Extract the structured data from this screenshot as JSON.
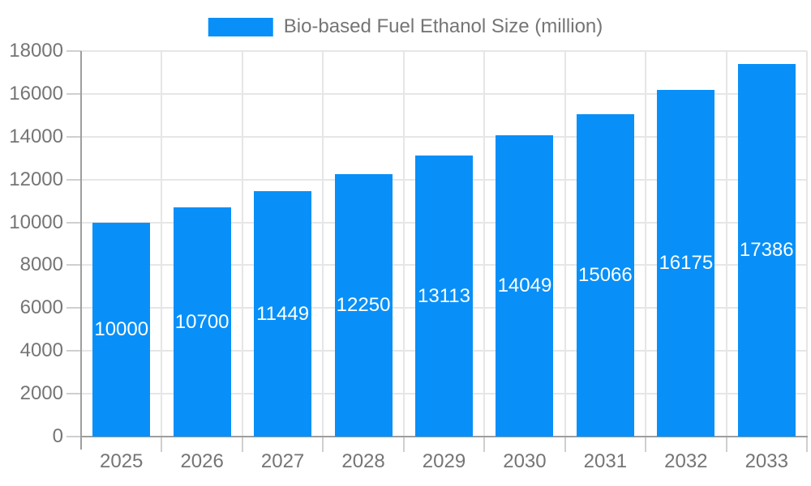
{
  "chart_data": {
    "type": "bar",
    "title": "Bio-based Fuel Ethanol Size (million)",
    "categories": [
      "2025",
      "2026",
      "2027",
      "2028",
      "2029",
      "2030",
      "2031",
      "2032",
      "2033"
    ],
    "series": [
      {
        "name": "Bio-based Fuel Ethanol Size (million)",
        "values": [
          10000,
          10700,
          11449,
          12250,
          13113,
          14049,
          15066,
          16175,
          17386
        ]
      }
    ],
    "xlabel": "",
    "ylabel": "",
    "ylim": [
      0,
      18000
    ],
    "ytick_step": 2000,
    "grid": true,
    "legend_position": "top",
    "value_label_position": "inside-center",
    "colors": {
      "bar": "#0890f8",
      "value_label": "#ffffff",
      "axis_text": "#757575",
      "grid": "#e6e6e6",
      "axis_line": "#9e9e9e",
      "tick": "#cfcfcf",
      "background": "#ffffff"
    }
  }
}
